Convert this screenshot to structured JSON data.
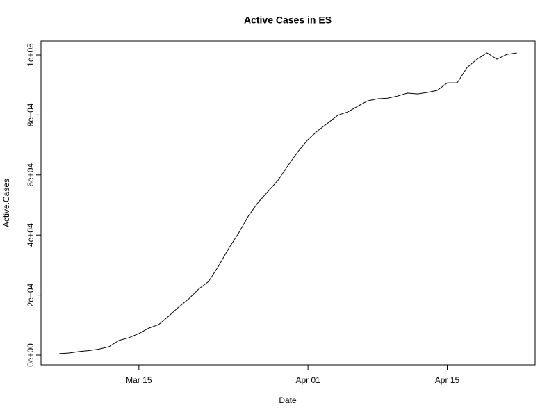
{
  "chart_data": {
    "type": "line",
    "title": "Active Cases in ES",
    "xlabel": "Date",
    "ylabel": "Active.Cases",
    "x": [
      "Mar 07",
      "Mar 08",
      "Mar 09",
      "Mar 10",
      "Mar 11",
      "Mar 12",
      "Mar 13",
      "Mar 14",
      "Mar 15",
      "Mar 16",
      "Mar 17",
      "Mar 18",
      "Mar 19",
      "Mar 20",
      "Mar 21",
      "Mar 22",
      "Mar 23",
      "Mar 24",
      "Mar 25",
      "Mar 26",
      "Mar 27",
      "Mar 28",
      "Mar 29",
      "Mar 30",
      "Mar 31",
      "Apr 01",
      "Apr 02",
      "Apr 03",
      "Apr 04",
      "Apr 05",
      "Apr 06",
      "Apr 07",
      "Apr 08",
      "Apr 09",
      "Apr 10",
      "Apr 11",
      "Apr 12",
      "Apr 13",
      "Apr 14",
      "Apr 15",
      "Apr 16",
      "Apr 17",
      "Apr 18",
      "Apr 19",
      "Apr 20",
      "Apr 21",
      "Apr 22"
    ],
    "values": [
      500,
      700,
      1200,
      1500,
      2000,
      2800,
      4900,
      5800,
      7200,
      9000,
      10200,
      13000,
      16000,
      18700,
      22000,
      24500,
      29600,
      35400,
      40500,
      46300,
      50900,
      54600,
      58300,
      63200,
      67800,
      71800,
      74800,
      77300,
      79900,
      81000,
      82900,
      84700,
      85400,
      85600,
      86300,
      87300,
      87000,
      87500,
      88200,
      90700,
      90700,
      95800,
      98600,
      100700,
      98600,
      100200,
      100700
    ],
    "color": "#000000",
    "xticks": [
      "Mar 15",
      "Apr 01",
      "Apr 15"
    ],
    "ylim": [
      -3240,
      104630
    ],
    "yticks": [
      {
        "value": 0,
        "label": "0e+00"
      },
      {
        "value": 20000,
        "label": "2e+04"
      },
      {
        "value": 40000,
        "label": "4e+04"
      },
      {
        "value": 60000,
        "label": "6e+04"
      },
      {
        "value": 80000,
        "label": "8e+04"
      },
      {
        "value": 100000,
        "label": "1e+05"
      }
    ]
  }
}
